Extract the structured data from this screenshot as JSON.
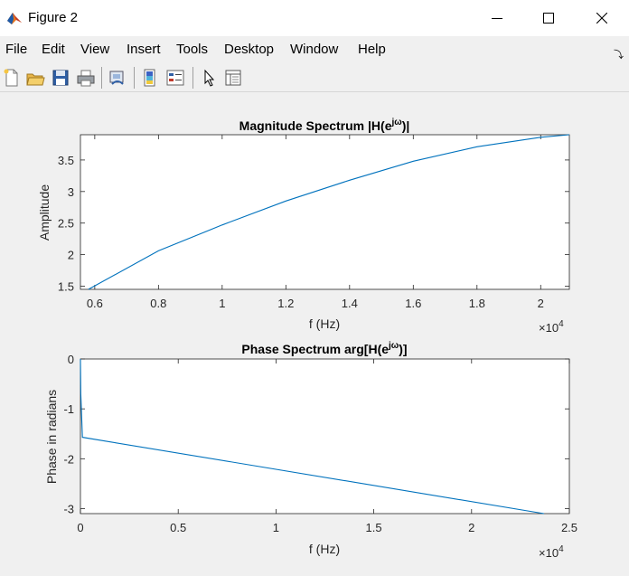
{
  "window": {
    "title": "Figure 2",
    "icon": "matlab-logo-icon",
    "controls": [
      "minimize-icon",
      "maximize-icon",
      "close-icon"
    ]
  },
  "menu": {
    "items": [
      "File",
      "Edit",
      "View",
      "Insert",
      "Tools",
      "Desktop",
      "Window",
      "Help"
    ]
  },
  "toolbar": {
    "tools": [
      "new-figure-icon",
      "open-file-icon",
      "save-icon",
      "print-icon",
      "link-plot-icon",
      "insert-colorbar-icon",
      "insert-legend-icon",
      "edit-plot-icon",
      "property-inspector-icon"
    ]
  },
  "chart_data": [
    {
      "type": "line",
      "title_main": "Magnitude Spectrum |H(e",
      "title_sup": "jω",
      "title_end": ")|",
      "xlabel": "f (Hz)",
      "ylabel": "Amplitude",
      "x_multiplier_base": "×10",
      "x_multiplier_exp": "4",
      "xlim": [
        0.555,
        2.09
      ],
      "ylim": [
        1.45,
        3.9
      ],
      "xticks": [
        0.6,
        0.8,
        1,
        1.2,
        1.4,
        1.6,
        1.8,
        2
      ],
      "xtick_labels": [
        "0.6",
        "0.8",
        "1",
        "1.2",
        "1.4",
        "1.6",
        "1.8",
        "2"
      ],
      "yticks": [
        1.5,
        2,
        2.5,
        3,
        3.5
      ],
      "ytick_labels": [
        "1.5",
        "2",
        "2.5",
        "3",
        "3.5"
      ],
      "grid": false,
      "color": "#0072bd",
      "x": [
        0.58,
        0.8,
        1.0,
        1.2,
        1.4,
        1.6,
        1.8,
        2.0,
        2.09
      ],
      "y": [
        1.45,
        2.06,
        2.47,
        2.85,
        3.18,
        3.48,
        3.71,
        3.86,
        3.9
      ]
    },
    {
      "type": "line",
      "title_main": "Phase Spectrum arg[H(e",
      "title_sup": "jω",
      "title_end": ")]",
      "xlabel": "f (Hz)",
      "ylabel": "Phase in radians",
      "x_multiplier_base": "×10",
      "x_multiplier_exp": "4",
      "xlim": [
        0,
        2.5
      ],
      "ylim": [
        -3.1,
        0
      ],
      "xticks": [
        0,
        0.5,
        1,
        1.5,
        2,
        2.5
      ],
      "xtick_labels": [
        "0",
        "0.5",
        "1",
        "1.5",
        "2",
        "2.5"
      ],
      "yticks": [
        -3,
        -2,
        -1,
        0
      ],
      "ytick_labels": [
        "-3",
        "-2",
        "-1",
        "0"
      ],
      "grid": false,
      "color": "#0072bd",
      "x": [
        0,
        0.002,
        0.01,
        2.37
      ],
      "y": [
        0,
        -0.7,
        -1.57,
        -3.1
      ]
    }
  ]
}
